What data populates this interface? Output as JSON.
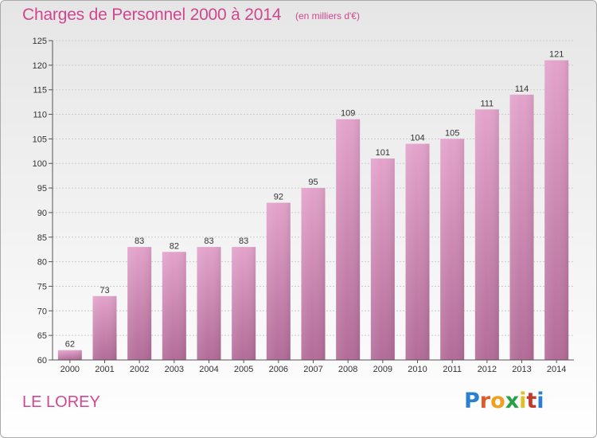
{
  "header": {
    "title": "Charges de Personnel 2000 à 2014",
    "subtitle": "(en milliers d'€)"
  },
  "footer": {
    "location": "LE LOREY",
    "logo_text": "Proxiti",
    "logo_colors": [
      "#2a7fd0",
      "#e05a2a",
      "#f0a020",
      "#2aa04a",
      "#e0c020",
      "#c0392b",
      "#2a7fd0"
    ]
  },
  "colors": {
    "bar_top": "#e3a3cb",
    "bar_bottom": "#b26c98",
    "grid": "#cccccc",
    "accent": "#d0478f"
  },
  "chart_data": {
    "type": "bar",
    "title": "Charges de Personnel 2000 à 2014",
    "subtitle": "(en milliers d'€)",
    "xlabel": "",
    "ylabel": "",
    "categories": [
      "2000",
      "2001",
      "2002",
      "2003",
      "2004",
      "2005",
      "2006",
      "2007",
      "2008",
      "2009",
      "2010",
      "2011",
      "2012",
      "2013",
      "2014"
    ],
    "values": [
      62,
      73,
      83,
      82,
      83,
      83,
      92,
      95,
      109,
      101,
      104,
      105,
      111,
      114,
      121
    ],
    "ylim": [
      60,
      125
    ],
    "yticks": [
      60,
      65,
      70,
      75,
      80,
      85,
      90,
      95,
      100,
      105,
      110,
      115,
      120,
      125
    ],
    "grid": true,
    "data_labels": true
  }
}
